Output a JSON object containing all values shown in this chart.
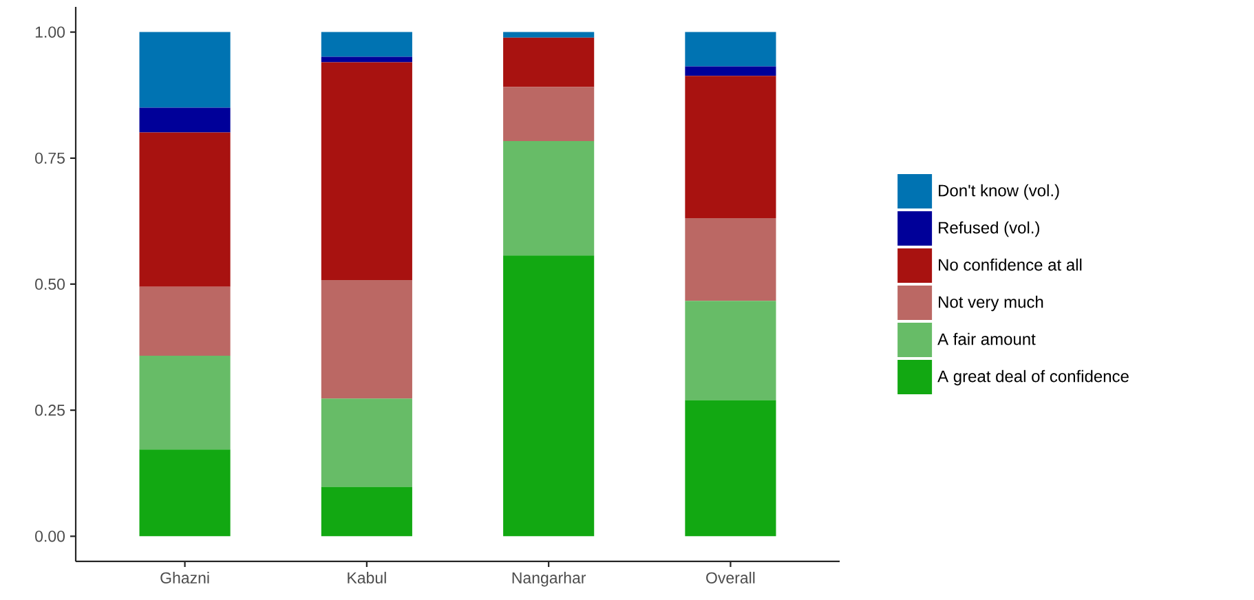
{
  "chart_data": {
    "type": "bar",
    "stacked": true,
    "legend": "right",
    "categories": [
      "Ghazni",
      "Kabul",
      "Nangarhar",
      "Overall"
    ],
    "series": [
      {
        "name": "A great deal of confidence",
        "color": "#12a812",
        "values": [
          0.172,
          0.098,
          0.557,
          0.27
        ]
      },
      {
        "name": "A fair amount",
        "color": "#67bc67",
        "values": [
          0.186,
          0.175,
          0.227,
          0.197
        ]
      },
      {
        "name": "Not very much",
        "color": "#bb6864",
        "values": [
          0.137,
          0.235,
          0.107,
          0.164
        ]
      },
      {
        "name": "No confidence at all",
        "color": "#a81210",
        "values": [
          0.306,
          0.432,
          0.098,
          0.282
        ]
      },
      {
        "name": "Refused (vol.)",
        "color": "#000099",
        "values": [
          0.049,
          0.011,
          0,
          0.019
        ]
      },
      {
        "name": "Don't know (vol.)",
        "color": "#0073b2",
        "values": [
          0.15,
          0.049,
          0.011,
          0.068
        ]
      }
    ],
    "ylim": [
      -0.05,
      1.05
    ],
    "yticks": [
      {
        "value": 0,
        "label": "0.00"
      },
      {
        "value": 0.25,
        "label": "0.25"
      },
      {
        "value": 0.5,
        "label": "0.50"
      },
      {
        "value": 0.75,
        "label": "0.75"
      },
      {
        "value": 1,
        "label": "1.00"
      }
    ]
  }
}
